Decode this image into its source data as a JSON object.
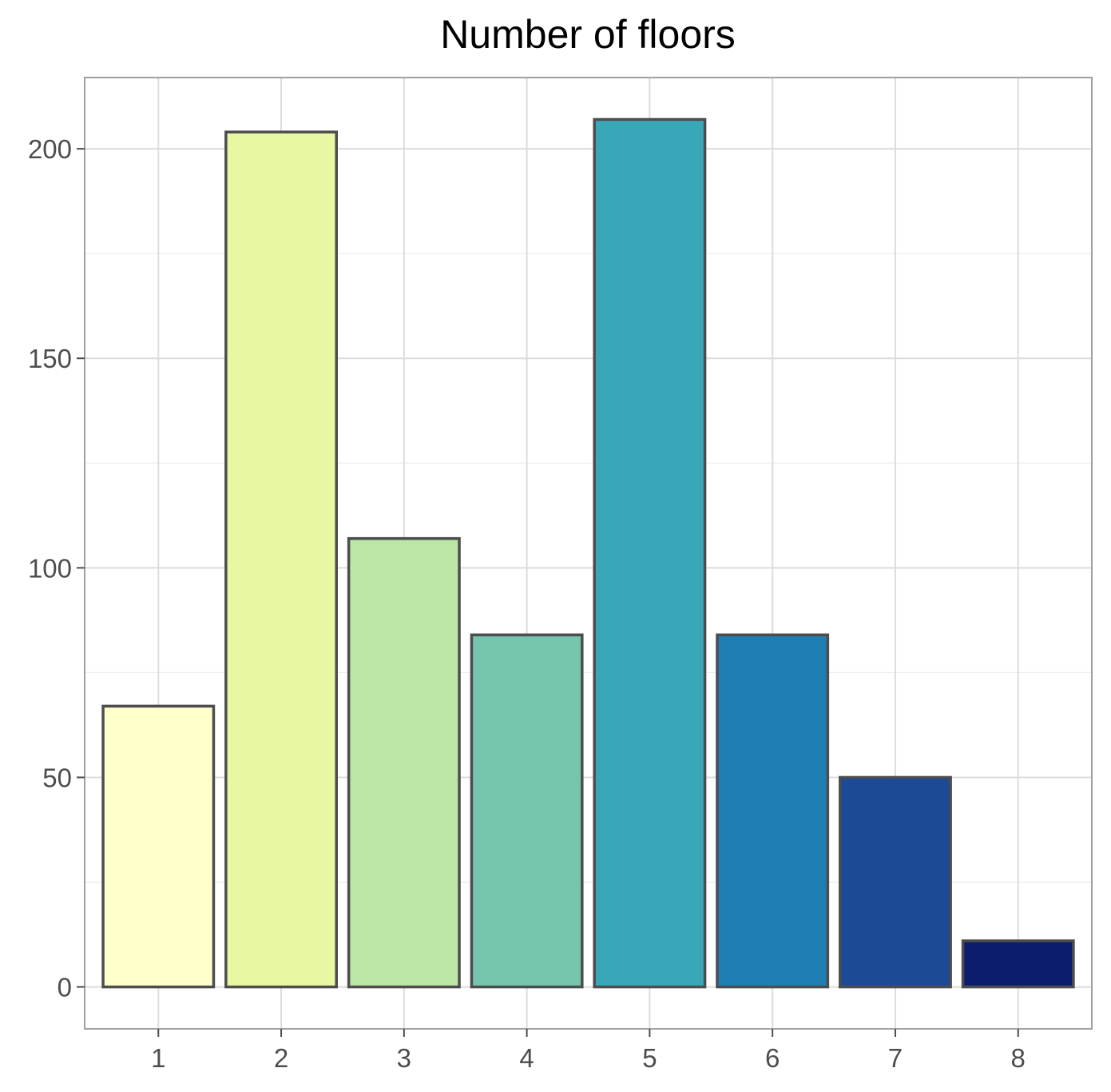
{
  "chart_data": {
    "type": "bar",
    "title": "Number of floors",
    "xlabel": "",
    "ylabel": "",
    "categories": [
      "1",
      "2",
      "3",
      "4",
      "5",
      "6",
      "7",
      "8"
    ],
    "values": [
      67,
      204,
      107,
      84,
      207,
      84,
      50,
      11
    ],
    "colors": [
      "#FFFFCC",
      "#E6F8A1",
      "#BBE6A5",
      "#73C5AD",
      "#38A8B9",
      "#1F7EB4",
      "#1D4A97",
      "#0C1D6E"
    ],
    "bar_outline_color": "#4D4D4D",
    "ylim": [
      -10,
      217
    ],
    "yticks": [
      0,
      50,
      100,
      150,
      200
    ],
    "grid": true,
    "legend": "none"
  }
}
